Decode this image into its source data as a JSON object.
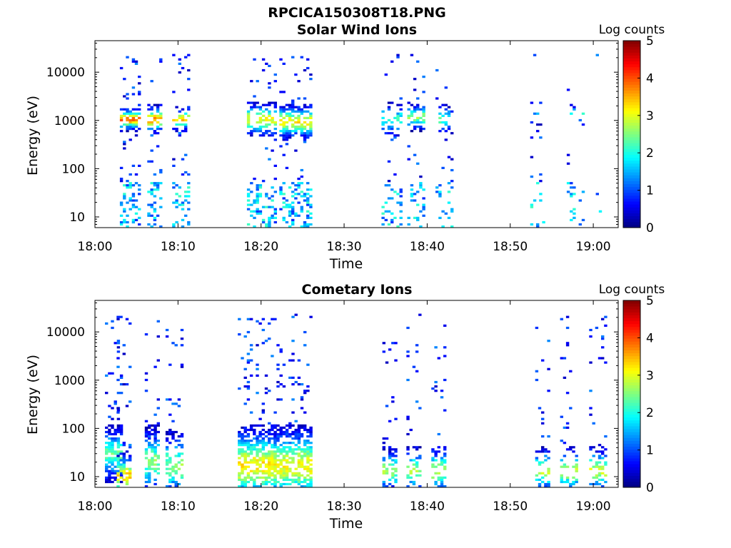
{
  "figure_title": "RPCICA150308T18.PNG",
  "chart_data": [
    {
      "type": "heatmap",
      "title": "Solar Wind Ions",
      "xlabel": "Time",
      "ylabel": "Energy (eV)",
      "x_ticks": [
        "18:00",
        "18:10",
        "18:20",
        "18:30",
        "18:40",
        "18:50",
        "19:00"
      ],
      "x_range_minutes": [
        0,
        63
      ],
      "y_scale": "log",
      "y_ticks": [
        "10",
        "100",
        "1000",
        "10000"
      ],
      "y_range": [
        6,
        45000
      ],
      "colorbar": {
        "label": "Log counts",
        "ticks": [
          "0",
          "1",
          "2",
          "3",
          "4",
          "5"
        ],
        "range": [
          0,
          5
        ],
        "colormap": "jet"
      },
      "bursts": [
        {
          "t": 3.0,
          "dur": 2.5,
          "density": 0.55,
          "core_logE": 3.0,
          "core_spread": 0.1,
          "core_level": 3.5
        },
        {
          "t": 6.3,
          "dur": 1.8,
          "density": 0.5,
          "core_logE": 3.0,
          "core_spread": 0.12,
          "core_level": 3.4
        },
        {
          "t": 9.3,
          "dur": 2.0,
          "density": 0.45,
          "core_logE": 3.0,
          "core_spread": 0.1,
          "core_level": 3.1
        },
        {
          "t": 18.3,
          "dur": 3.5,
          "density": 0.5,
          "core_logE": 3.0,
          "core_spread": 0.15,
          "core_level": 2.7
        },
        {
          "t": 22.2,
          "dur": 3.8,
          "density": 0.55,
          "core_logE": 2.95,
          "core_spread": 0.15,
          "core_level": 2.9
        },
        {
          "t": 34.5,
          "dur": 2.2,
          "density": 0.3,
          "core_logE": 3.0,
          "core_spread": 0.15,
          "core_level": 1.8
        },
        {
          "t": 37.6,
          "dur": 2.0,
          "density": 0.35,
          "core_logE": 3.05,
          "core_spread": 0.12,
          "core_level": 2.3
        },
        {
          "t": 41.0,
          "dur": 2.0,
          "density": 0.3,
          "core_logE": 3.0,
          "core_spread": 0.12,
          "core_level": 2.0
        },
        {
          "t": 52.4,
          "dur": 1.8,
          "density": 0.15,
          "core_logE": 3.05,
          "core_spread": 0.08,
          "core_level": 1.6
        },
        {
          "t": 56.8,
          "dur": 2.0,
          "density": 0.15,
          "core_logE": 3.1,
          "core_spread": 0.1,
          "core_level": 1.7
        },
        {
          "t": 60.3,
          "dur": 0.7,
          "density": 0.1,
          "core_logE": 1.1,
          "core_spread": 0.05,
          "core_level": 1.7
        }
      ]
    },
    {
      "type": "heatmap",
      "title": "Cometary Ions",
      "xlabel": "Time",
      "ylabel": "Energy (eV)",
      "x_ticks": [
        "18:00",
        "18:10",
        "18:20",
        "18:30",
        "18:40",
        "18:50",
        "19:00"
      ],
      "x_range_minutes": [
        0,
        63
      ],
      "y_scale": "log",
      "y_ticks": [
        "10",
        "100",
        "1000",
        "10000"
      ],
      "y_range": [
        6,
        45000
      ],
      "colorbar": {
        "label": "Log counts",
        "ticks": [
          "0",
          "1",
          "2",
          "3",
          "4",
          "5"
        ],
        "range": [
          0,
          5
        ],
        "colormap": "jet"
      },
      "bursts": [
        {
          "t": 1.2,
          "dur": 1.8,
          "density": 0.6,
          "core_logE": 1.45,
          "core_spread": 0.25,
          "core_level": 2.0
        },
        {
          "t": 2.6,
          "dur": 1.5,
          "density": 0.5,
          "core_logE": 1.0,
          "core_spread": 0.2,
          "core_level": 3.0
        },
        {
          "t": 6.0,
          "dur": 1.8,
          "density": 0.5,
          "core_logE": 1.3,
          "core_spread": 0.3,
          "core_level": 2.2
        },
        {
          "t": 8.5,
          "dur": 1.8,
          "density": 0.45,
          "core_logE": 1.2,
          "core_spread": 0.3,
          "core_level": 2.2
        },
        {
          "t": 17.2,
          "dur": 4.5,
          "density": 0.6,
          "core_logE": 1.2,
          "core_spread": 0.35,
          "core_level": 2.9
        },
        {
          "t": 21.5,
          "dur": 4.5,
          "density": 0.6,
          "core_logE": 1.2,
          "core_spread": 0.35,
          "core_level": 2.8
        },
        {
          "t": 34.6,
          "dur": 1.5,
          "density": 0.4,
          "core_logE": 1.1,
          "core_spread": 0.2,
          "core_level": 2.3
        },
        {
          "t": 37.5,
          "dur": 1.8,
          "density": 0.4,
          "core_logE": 1.1,
          "core_spread": 0.2,
          "core_level": 2.4
        },
        {
          "t": 40.5,
          "dur": 1.8,
          "density": 0.4,
          "core_logE": 1.1,
          "core_spread": 0.2,
          "core_level": 2.6
        },
        {
          "t": 53.0,
          "dur": 1.5,
          "density": 0.3,
          "core_logE": 1.1,
          "core_spread": 0.2,
          "core_level": 2.5
        },
        {
          "t": 56.0,
          "dur": 2.0,
          "density": 0.35,
          "core_logE": 1.1,
          "core_spread": 0.2,
          "core_level": 2.6
        },
        {
          "t": 59.5,
          "dur": 2.0,
          "density": 0.35,
          "core_logE": 1.1,
          "core_spread": 0.2,
          "core_level": 2.6
        }
      ]
    }
  ]
}
